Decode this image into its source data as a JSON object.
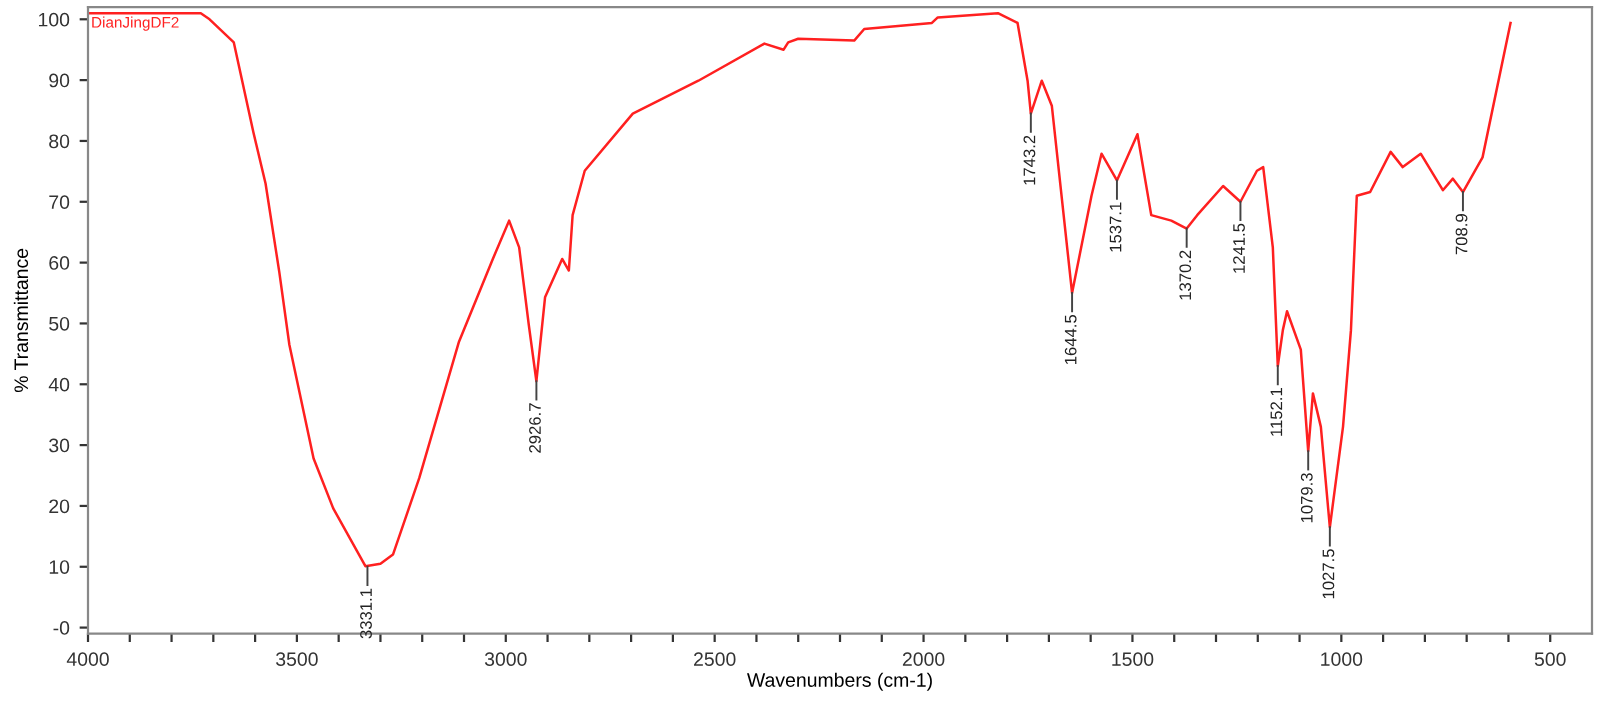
{
  "chart_data": {
    "type": "line",
    "xlabel": "Wavenumbers (cm-1)",
    "ylabel": "% Transmittance",
    "annotations": [
      "DianJingDF2",
      {
        "text": "3331.1",
        "x": 3331.1,
        "y": 10
      },
      {
        "text": "2926.7",
        "x": 2926.7,
        "y": 40.5
      },
      {
        "text": "1743.2",
        "x": 1743.2,
        "y": 84.5
      },
      {
        "text": "1644.5",
        "x": 1644.5,
        "y": 55
      },
      {
        "text": "1537.1",
        "x": 1537.1,
        "y": 73.5
      },
      {
        "text": "1370.2",
        "x": 1370.2,
        "y": 65.6
      },
      {
        "text": "1241.5",
        "x": 1241.5,
        "y": 70
      },
      {
        "text": "1152.1",
        "x": 1152.1,
        "y": 43
      },
      {
        "text": "1079.3",
        "x": 1079.3,
        "y": 29
      },
      {
        "text": "1027.5",
        "x": 1027.5,
        "y": 16.5
      },
      {
        "text": "708.9",
        "x": 708.9,
        "y": 71.6
      }
    ],
    "x": [
      4000,
      3850,
      3730,
      3709,
      3651,
      3604,
      3575,
      3542,
      3518,
      3460,
      3413,
      3336,
      3300,
      3270,
      3207,
      3112,
      3031,
      2992,
      2968,
      2945,
      2926.7,
      2906,
      2865,
      2849,
      2840,
      2811,
      2696,
      2539,
      2381,
      2335,
      2324,
      2300,
      2166,
      2142,
      1980,
      1966,
      1822,
      1775,
      1751,
      1743.2,
      1717,
      1693,
      1644.5,
      1598,
      1574,
      1537.1,
      1488,
      1455,
      1407,
      1370.2,
      1345,
      1283,
      1241.5,
      1202,
      1187,
      1164,
      1152.1,
      1140,
      1130,
      1097,
      1079.3,
      1068,
      1049,
      1027.5,
      996,
      977,
      963,
      931,
      882,
      853,
      810,
      757,
      733,
      708.9,
      662,
      595
    ],
    "series": [
      {
        "color": "#ff2020",
        "values": [
          101,
          101,
          101,
          100,
          96.2,
          81.4,
          73,
          58.4,
          46.5,
          27.8,
          19.6,
          10.1,
          10.5,
          12,
          24.6,
          47,
          60.6,
          66.9,
          62.5,
          49.8,
          40.5,
          54.3,
          60.6,
          58.7,
          67.8,
          75.1,
          84.5,
          89.9,
          96,
          95,
          96.2,
          96.8,
          96.5,
          98.4,
          99.4,
          100.3,
          101,
          99.4,
          89.9,
          84.5,
          89.9,
          85.8,
          55,
          71,
          77.9,
          73.5,
          81.1,
          67.8,
          66.9,
          65.6,
          67.8,
          72.6,
          70,
          75.1,
          75.7,
          62.5,
          43,
          48.9,
          52,
          45.7,
          29,
          38.5,
          33,
          16.5,
          33,
          48.9,
          71,
          71.6,
          78.2,
          75.7,
          77.9,
          71.9,
          73.8,
          71.6,
          77.3,
          99.4
        ]
      }
    ],
    "xlim": [
      4000,
      400
    ],
    "ylim": [
      -1,
      102
    ],
    "xticks": [
      4000,
      {
        "value": 3900,
        "label": null
      },
      {
        "value": 3800,
        "label": null
      },
      {
        "value": 3700,
        "label": null
      },
      {
        "value": 3600,
        "label": null
      },
      3500,
      {
        "value": 3400,
        "label": null
      },
      {
        "value": 3300,
        "label": null
      },
      {
        "value": 3200,
        "label": null
      },
      {
        "value": 3100,
        "label": null
      },
      3000,
      {
        "value": 2900,
        "label": null
      },
      {
        "value": 2800,
        "label": null
      },
      {
        "value": 2700,
        "label": null
      },
      {
        "value": 2600,
        "label": null
      },
      2500,
      {
        "value": 2400,
        "label": null
      },
      {
        "value": 2300,
        "label": null
      },
      {
        "value": 2200,
        "label": null
      },
      {
        "value": 2100,
        "label": null
      },
      2000,
      {
        "value": 1900,
        "label": null
      },
      {
        "value": 1800,
        "label": null
      },
      {
        "value": 1700,
        "label": null
      },
      {
        "value": 1600,
        "label": null
      },
      1500,
      {
        "value": 1400,
        "label": null
      },
      {
        "value": 1300,
        "label": null
      },
      {
        "value": 1200,
        "label": null
      },
      {
        "value": 1100,
        "label": null
      },
      1000,
      {
        "value": 900,
        "label": null
      },
      {
        "value": 800,
        "label": null
      },
      {
        "value": 700,
        "label": null
      },
      {
        "value": 600,
        "label": null
      },
      500
    ],
    "yticks": [
      {
        "value": 0,
        "label": "-0"
      },
      10,
      20,
      30,
      40,
      50,
      60,
      70,
      80,
      90,
      100
    ],
    "grid": false,
    "legend": false,
    "marker": "none",
    "line_style": "solid"
  }
}
